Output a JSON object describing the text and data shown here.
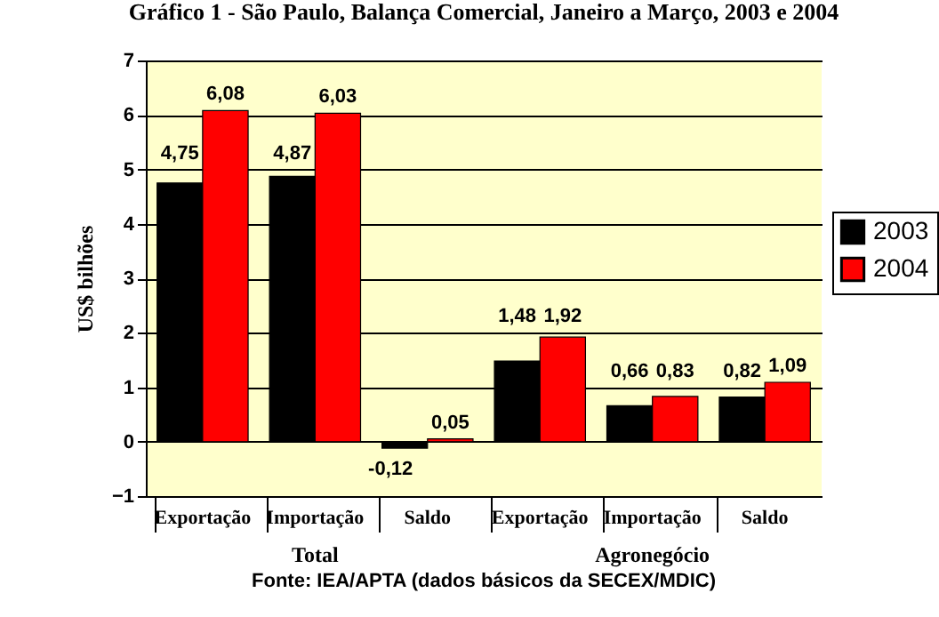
{
  "chart_data": {
    "type": "bar",
    "title": "Gráfico 1 - São Paulo, Balança Comercial, Janeiro a Março, 2003 e 2004",
    "ylabel": "US$ bilhões",
    "categories": [
      "Exportação",
      "Importação",
      "Saldo",
      "Exportação",
      "Importação",
      "Saldo"
    ],
    "series": [
      {
        "name": "2003",
        "color": "#000000",
        "values": [
          4.75,
          4.87,
          -0.12,
          1.48,
          0.66,
          0.82
        ],
        "value_labels": [
          "4,75",
          "4,87",
          "-0,12",
          "1,48",
          "0,66",
          "0,82"
        ]
      },
      {
        "name": "2004",
        "color": "#ff0000",
        "values": [
          6.08,
          6.03,
          0.05,
          1.92,
          0.83,
          1.09
        ],
        "value_labels": [
          "6,08",
          "6,03",
          "0,05",
          "1,92",
          "0,83",
          "1,09"
        ]
      }
    ],
    "ylim": [
      -1,
      7
    ],
    "yticks": [
      -1,
      0,
      1,
      2,
      3,
      4,
      5,
      6,
      7
    ],
    "grid": "y",
    "legend": "right",
    "annotations": [
      "Total",
      "Agronegócio",
      "Fonte: IEA/APTA (dados básicos da SECEX/MDIC)"
    ]
  }
}
